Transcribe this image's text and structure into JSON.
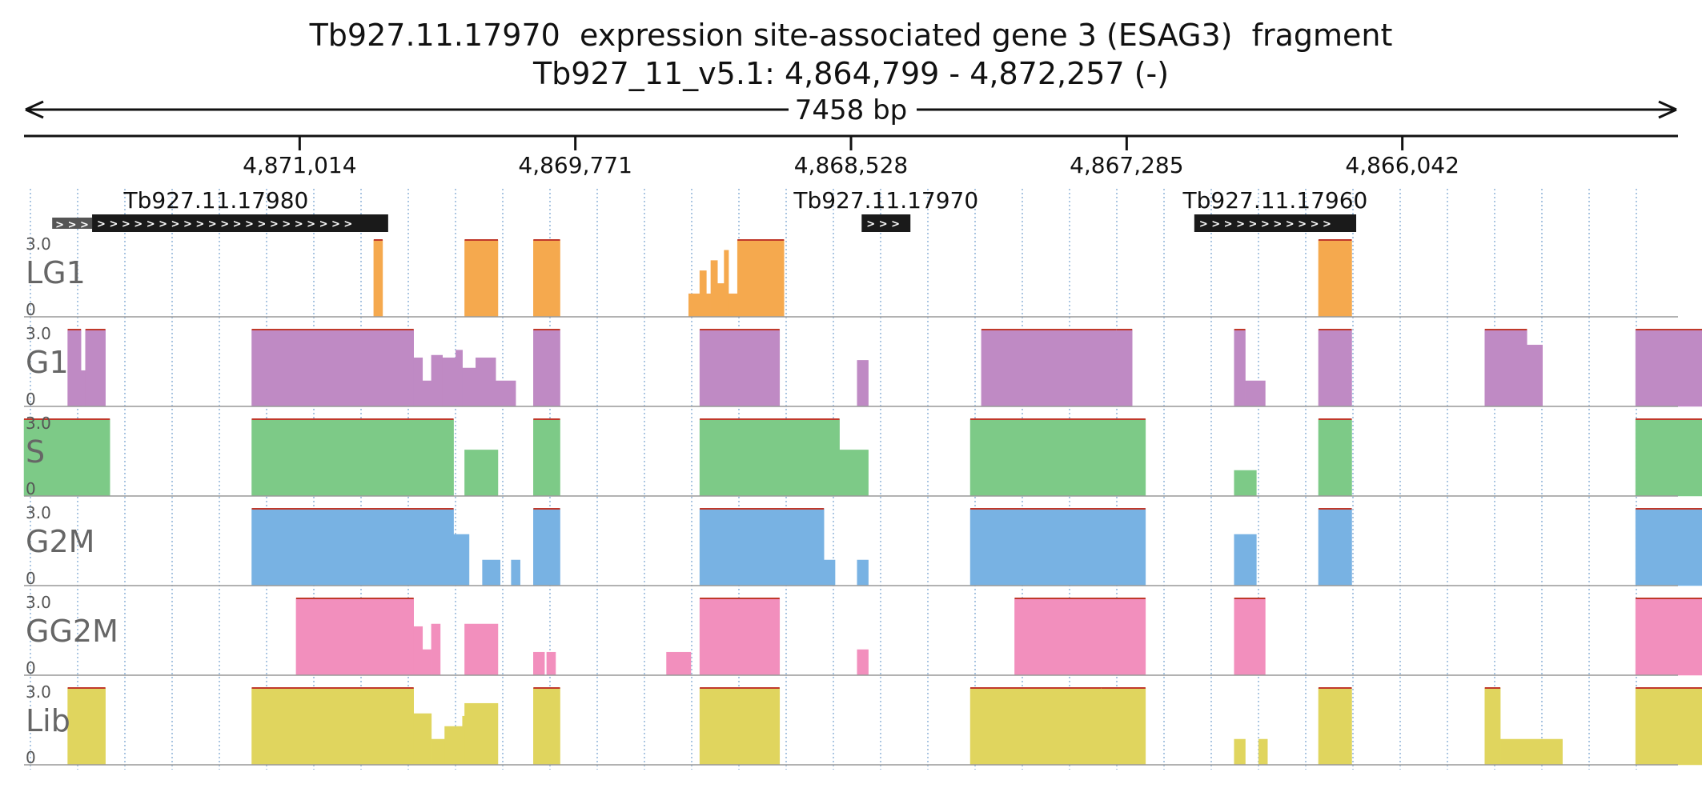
{
  "header": {
    "title": "Tb927.11.17970  expression site-associated gene 3 (ESAG3)  fragment",
    "region": "Tb927_11_v5.1: 4,864,799 - 4,872,257 (-)",
    "span_label": "7458 bp"
  },
  "colors": {
    "LG1": "#f5a94e",
    "G1": "#bf8ac4",
    "S": "#7dca87",
    "G2M": "#78b2e3",
    "GG2M": "#f28fbd",
    "Lib": "#e0d55e",
    "gene": "#1a1a1a",
    "grid": "#8fb3d9"
  },
  "chart_data": {
    "type": "area",
    "title": "Tb927.11.17970  expression site-associated gene 3 (ESAG3)  fragment",
    "chromosome": "Tb927_11_v5.1",
    "xlim": [
      4872257,
      4864799
    ],
    "strand": "-",
    "ticks": [
      {
        "pos": 4871014,
        "label": "4,871,014"
      },
      {
        "pos": 4869771,
        "label": "4,869,771"
      },
      {
        "pos": 4868528,
        "label": "4,868,528"
      },
      {
        "pos": 4867285,
        "label": "4,867,285"
      },
      {
        "pos": 4866042,
        "label": "4,866,042"
      }
    ],
    "genes": [
      {
        "name": "Tb927.11.17980",
        "start": 4871950,
        "end": 4870615,
        "utr_start": 4872130,
        "arrows": "> > > > > > > > > > > > > > > > > > > > >",
        "utr_arrows": "> > >"
      },
      {
        "name": "Tb927.11.17970",
        "start": 4868480,
        "end": 4868260,
        "arrows": "> > >"
      },
      {
        "name": "Tb927.11.17960",
        "start": 4866980,
        "end": 4866250,
        "arrows": "> > > > > > > > > > >"
      }
    ],
    "ylim": [
      0,
      3.0
    ],
    "ymax_label": "3.0",
    "ymin_label": "0",
    "series": [
      {
        "name": "LG1",
        "segments": [
          [
            4870680,
            4870640,
            3.0
          ],
          [
            4870270,
            4870120,
            3.0
          ],
          [
            4869960,
            4869840,
            3.0
          ],
          [
            4869260,
            4869210,
            0.9
          ],
          [
            4869210,
            4869180,
            1.8
          ],
          [
            4869180,
            4869160,
            0.9
          ],
          [
            4869160,
            4869130,
            2.2
          ],
          [
            4869130,
            4869100,
            1.3
          ],
          [
            4869100,
            4869080,
            2.6
          ],
          [
            4869080,
            4869040,
            0.9
          ],
          [
            4869040,
            4868830,
            3.0
          ],
          [
            4866420,
            4866270,
            3.0
          ]
        ]
      },
      {
        "name": "G1",
        "segments": [
          [
            4872060,
            4872000,
            3.0
          ],
          [
            4872000,
            4871980,
            1.4
          ],
          [
            4871980,
            4871890,
            3.0
          ],
          [
            4871230,
            4870500,
            3.0
          ],
          [
            4870500,
            4870460,
            1.9
          ],
          [
            4870460,
            4870420,
            1.0
          ],
          [
            4870420,
            4870370,
            2.0
          ],
          [
            4870370,
            4870310,
            1.9
          ],
          [
            4870310,
            4870280,
            2.2
          ],
          [
            4870280,
            4870220,
            1.5
          ],
          [
            4870220,
            4870130,
            1.9
          ],
          [
            4870130,
            4870040,
            1.0
          ],
          [
            4869960,
            4869840,
            3.0
          ],
          [
            4869210,
            4868850,
            3.0
          ],
          [
            4868500,
            4868450,
            1.8
          ],
          [
            4867940,
            4867330,
            3.0
          ],
          [
            4867330,
            4867260,
            3.0
          ],
          [
            4866800,
            4866750,
            3.0
          ],
          [
            4866750,
            4866660,
            1.0
          ],
          [
            4866420,
            4866270,
            3.0
          ],
          [
            4865670,
            4865480,
            3.0
          ],
          [
            4865480,
            4865410,
            2.4
          ],
          [
            4864990,
            4864570,
            3.0
          ]
        ]
      },
      {
        "name": "S",
        "segments": [
          [
            4872257,
            4871870,
            3.0
          ],
          [
            4871230,
            4870320,
            3.0
          ],
          [
            4870270,
            4870120,
            1.8
          ],
          [
            4869960,
            4869840,
            3.0
          ],
          [
            4869210,
            4868580,
            3.0
          ],
          [
            4868580,
            4868450,
            1.8
          ],
          [
            4867990,
            4867200,
            3.0
          ],
          [
            4866800,
            4866700,
            1.0
          ],
          [
            4866420,
            4866270,
            3.0
          ],
          [
            4864990,
            4864570,
            3.0
          ]
        ]
      },
      {
        "name": "G2M",
        "segments": [
          [
            4871230,
            4870320,
            3.0
          ],
          [
            4870320,
            4870250,
            2.0
          ],
          [
            4870190,
            4870110,
            1.0
          ],
          [
            4870060,
            4870020,
            1.0
          ],
          [
            4869960,
            4869840,
            3.0
          ],
          [
            4869210,
            4868650,
            3.0
          ],
          [
            4868650,
            4868600,
            1.0
          ],
          [
            4868500,
            4868450,
            1.0
          ],
          [
            4867990,
            4867200,
            3.0
          ],
          [
            4866800,
            4866700,
            2.0
          ],
          [
            4866420,
            4866270,
            3.0
          ],
          [
            4864990,
            4864600,
            3.0
          ],
          [
            4864600,
            4864500,
            1.0
          ]
        ]
      },
      {
        "name": "GG2M",
        "segments": [
          [
            4871030,
            4870500,
            3.0
          ],
          [
            4870500,
            4870460,
            1.9
          ],
          [
            4870460,
            4870420,
            1.0
          ],
          [
            4870420,
            4870380,
            2.0
          ],
          [
            4870270,
            4870120,
            2.0
          ],
          [
            4869960,
            4869910,
            0.9
          ],
          [
            4869900,
            4869860,
            0.9
          ],
          [
            4869360,
            4869250,
            0.9
          ],
          [
            4869210,
            4868850,
            3.0
          ],
          [
            4868500,
            4868450,
            1.0
          ],
          [
            4867790,
            4867200,
            3.0
          ],
          [
            4866800,
            4866660,
            3.0
          ],
          [
            4864990,
            4864570,
            3.0
          ]
        ]
      },
      {
        "name": "Lib",
        "segments": [
          [
            4872060,
            4871890,
            3.0
          ],
          [
            4871230,
            4870500,
            3.0
          ],
          [
            4870500,
            4870420,
            2.0
          ],
          [
            4870420,
            4870360,
            1.0
          ],
          [
            4870360,
            4870280,
            1.5
          ],
          [
            4870280,
            4870210,
            1.9
          ],
          [
            4870270,
            4870120,
            2.4
          ],
          [
            4869960,
            4869840,
            3.0
          ],
          [
            4869210,
            4868850,
            3.0
          ],
          [
            4867990,
            4867400,
            3.0
          ],
          [
            4867400,
            4867200,
            3.0
          ],
          [
            4866800,
            4866750,
            1.0
          ],
          [
            4866690,
            4866650,
            1.0
          ],
          [
            4866420,
            4866270,
            3.0
          ],
          [
            4865670,
            4865600,
            3.0
          ],
          [
            4865600,
            4865320,
            1.0
          ],
          [
            4864990,
            4864570,
            3.0
          ]
        ]
      }
    ]
  }
}
